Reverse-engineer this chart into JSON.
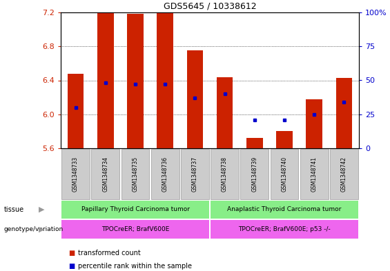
{
  "title": "GDS5645 / 10338612",
  "samples": [
    "GSM1348733",
    "GSM1348734",
    "GSM1348735",
    "GSM1348736",
    "GSM1348737",
    "GSM1348738",
    "GSM1348739",
    "GSM1348740",
    "GSM1348741",
    "GSM1348742"
  ],
  "transformed_count": [
    6.48,
    7.19,
    7.18,
    7.19,
    6.75,
    6.44,
    5.72,
    5.8,
    6.18,
    6.43
  ],
  "percentile_rank": [
    30,
    48,
    47,
    47,
    37,
    40,
    21,
    21,
    25,
    34
  ],
  "ymin": 5.6,
  "ymax": 7.2,
  "yticks_left": [
    5.6,
    6.0,
    6.4,
    6.8,
    7.2
  ],
  "yticks_right": [
    0,
    25,
    50,
    75,
    100
  ],
  "bar_color": "#cc2200",
  "dot_color": "#0000cc",
  "tissue_groups": [
    {
      "label": "Papillary Thyroid Carcinoma tumor",
      "start": 0,
      "end": 5,
      "color": "#88ee88"
    },
    {
      "label": "Anaplastic Thyroid Carcinoma tumor",
      "start": 5,
      "end": 10,
      "color": "#88ee88"
    }
  ],
  "genotype_texts": [
    "TPOCreER; BrafV600E",
    "TPOCreER; BrafV600E; p53 -/-"
  ],
  "genotype_color": "#ee66ee",
  "tissue_label": "tissue",
  "genotype_label": "genotype/variation",
  "legend_labels": [
    "transformed count",
    "percentile rank within the sample"
  ],
  "bar_color_leg": "#cc2200",
  "dot_color_leg": "#0000cc",
  "left_axis_color": "#cc2200",
  "right_axis_color": "#0000cc",
  "bg_color": "#ffffff",
  "xticklabel_bg": "#cccccc"
}
